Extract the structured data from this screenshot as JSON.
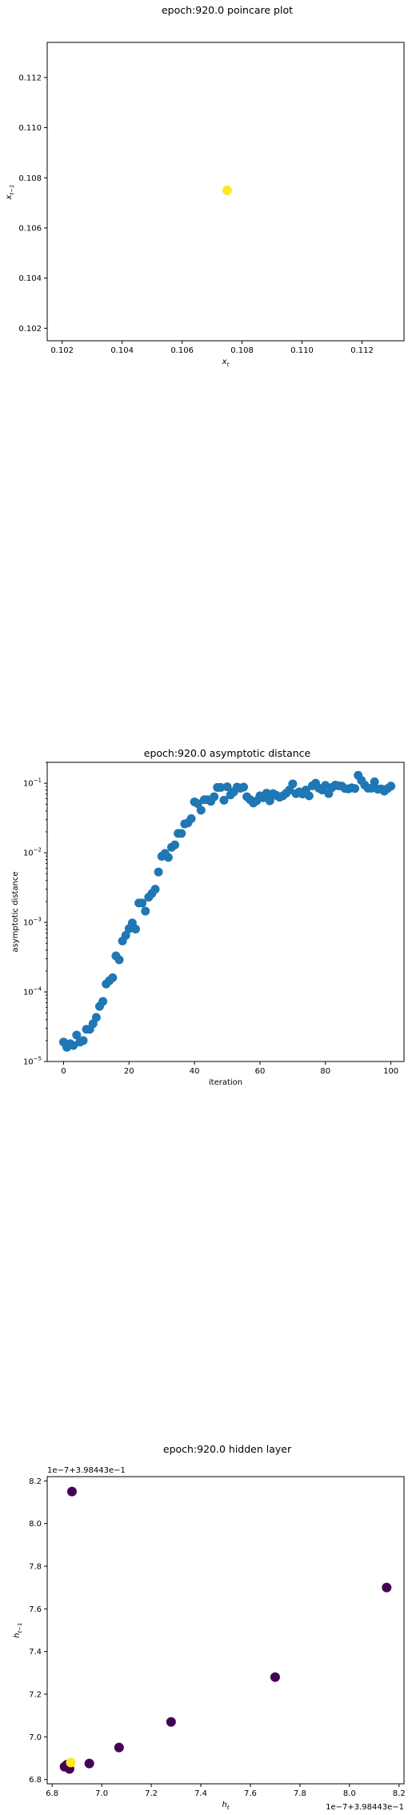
{
  "chart_data": [
    {
      "type": "scatter",
      "title": "epoch:920.0 poincare plot",
      "xlabel": "x_t",
      "ylabel": "x_{t-1}",
      "xlim": [
        0.1015,
        0.1134
      ],
      "ylim": [
        0.1015,
        0.1134
      ],
      "xticks": [
        "0.102",
        "0.104",
        "0.106",
        "0.108",
        "0.110",
        "0.112"
      ],
      "yticks": [
        "0.102",
        "0.104",
        "0.106",
        "0.108",
        "0.110",
        "0.112"
      ],
      "points": [
        {
          "x": 0.1075,
          "y": 0.1075
        }
      ],
      "point_color": "#fde725",
      "grid": false
    },
    {
      "type": "scatter",
      "title": "epoch:920.0 asymptotic distance",
      "xlabel": "iteration",
      "ylabel": "asymptotic distance",
      "yscale": "log",
      "xlim": [
        -5,
        104
      ],
      "ylim": [
        1e-05,
        0.2
      ],
      "xticks": [
        "0",
        "20",
        "40",
        "60",
        "80",
        "100"
      ],
      "yticks": [
        "10^-5",
        "10^-4",
        "10^-3",
        "10^-2",
        "10^-1"
      ],
      "series": [
        {
          "values": [
            1.9e-05,
            1.6e-05,
            1.8e-05,
            1.7e-05,
            2.4e-05,
            1.9e-05,
            2e-05,
            2.9e-05,
            2.9e-05,
            3.5e-05,
            4.3e-05,
            6.2e-05,
            7.3e-05,
            0.00013,
            0.000145,
            0.00016,
            0.00033,
            0.00029,
            0.00054,
            0.00065,
            0.00081,
            0.00098,
            0.0008,
            0.0019,
            0.0019,
            0.00145,
            0.0023,
            0.0026,
            0.003,
            0.0053,
            0.0089,
            0.0098,
            0.0086,
            0.012,
            0.013,
            0.019,
            0.019,
            0.026,
            0.027,
            0.031,
            0.054,
            0.051,
            0.041,
            0.058,
            0.058,
            0.055,
            0.064,
            0.087,
            0.087,
            0.057,
            0.089,
            0.068,
            0.075,
            0.088,
            0.085,
            0.088,
            0.064,
            0.058,
            0.052,
            0.056,
            0.066,
            0.062,
            0.072,
            0.056,
            0.071,
            0.067,
            0.063,
            0.066,
            0.072,
            0.08,
            0.098,
            0.071,
            0.075,
            0.07,
            0.08,
            0.066,
            0.092,
            0.1,
            0.085,
            0.08,
            0.093,
            0.071,
            0.087,
            0.094,
            0.092,
            0.091,
            0.084,
            0.083,
            0.086,
            0.084,
            0.13,
            0.11,
            0.094,
            0.085,
            0.085,
            0.105,
            0.082,
            0.083,
            0.077,
            0.084,
            0.091
          ]
        }
      ],
      "point_color": "#1f77b4",
      "grid": false
    },
    {
      "type": "scatter",
      "title": "epoch:920.0 hidden layer",
      "xlabel": "h_t",
      "ylabel": "h_{t-1}",
      "x_offset_text": "1e−7+3.98443e−1",
      "y_offset_text": "1e−7+3.98443e−1",
      "xlim": [
        6.8,
        8.2
      ],
      "ylim": [
        6.8,
        8.2
      ],
      "xticks": [
        "6.8",
        "7.0",
        "7.2",
        "7.4",
        "7.6",
        "7.8",
        "8.0",
        "8.2"
      ],
      "yticks": [
        "6.8",
        "7.0",
        "7.2",
        "7.4",
        "7.6",
        "7.8",
        "8.0",
        "8.2"
      ],
      "points": [
        {
          "x": 6.85,
          "y": 6.86,
          "color": "#440154"
        },
        {
          "x": 6.86,
          "y": 6.87,
          "color": "#440154"
        },
        {
          "x": 6.88,
          "y": 8.15,
          "color": "#440154"
        },
        {
          "x": 6.87,
          "y": 6.85,
          "color": "#440154"
        },
        {
          "x": 6.95,
          "y": 6.875,
          "color": "#440154"
        },
        {
          "x": 7.07,
          "y": 6.95,
          "color": "#440154"
        },
        {
          "x": 7.28,
          "y": 7.07,
          "color": "#440154"
        },
        {
          "x": 7.7,
          "y": 7.28,
          "color": "#440154"
        },
        {
          "x": 8.15,
          "y": 7.7,
          "color": "#440154"
        },
        {
          "x": 6.875,
          "y": 6.88,
          "color": "#fde725"
        }
      ],
      "grid": false
    }
  ]
}
